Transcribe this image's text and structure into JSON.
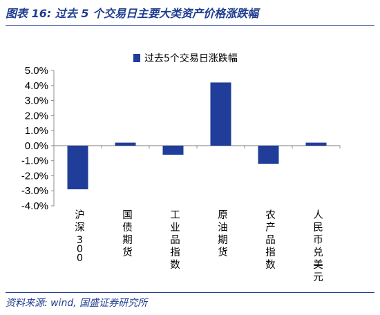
{
  "header": {
    "title": "图表 16:  过去 5 个交易日主要大类资产价格涨跌幅"
  },
  "footer": {
    "source": "资料来源: wind, 国盛证券研究所"
  },
  "colors": {
    "bar": "#1f3d99",
    "accent": "#1f3d8f",
    "axis": "#8c8c8c"
  },
  "chart_data": {
    "type": "bar",
    "categories": [
      "沪深300",
      "国债期货",
      "工业品指数",
      "原油期货",
      "农产品指数",
      "人民币兑美元"
    ],
    "series": [
      {
        "name": "过去5个交易日涨跌幅",
        "values": [
          -2.9,
          0.2,
          -0.6,
          4.2,
          -1.2,
          0.2
        ]
      }
    ],
    "ylim": [
      -4.0,
      5.0
    ],
    "yticks": [
      -4,
      -3,
      -2,
      -1,
      0,
      1,
      2,
      3,
      4,
      5
    ],
    "ytick_labels": [
      "-4.0%",
      "-3.0%",
      "-2.0%",
      "-1.0%",
      "0.0%",
      "1.0%",
      "2.0%",
      "3.0%",
      "4.0%",
      "5.0%"
    ],
    "xlabel": "",
    "ylabel": "",
    "grid": false,
    "legend_position": "top-center"
  }
}
